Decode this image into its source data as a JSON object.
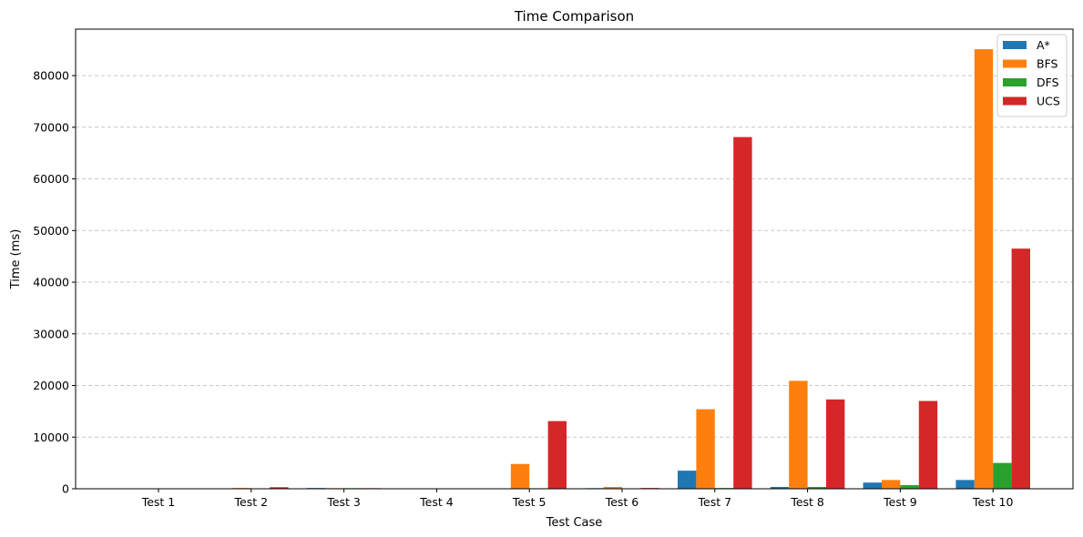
{
  "chart_data": {
    "type": "bar",
    "title": "Time Comparison",
    "xlabel": "Test Case",
    "ylabel": "Time (ms)",
    "categories": [
      "Test 1",
      "Test 2",
      "Test 3",
      "Test 4",
      "Test 5",
      "Test 6",
      "Test 7",
      "Test 8",
      "Test 9",
      "Test 10"
    ],
    "ylim": [
      0,
      89000
    ],
    "yticks": [
      0,
      10000,
      20000,
      30000,
      40000,
      50000,
      60000,
      70000,
      80000
    ],
    "grid": "y-dashed",
    "legend_position": "top-right",
    "series": [
      {
        "name": "A*",
        "color": "#1f77b4",
        "values": [
          10,
          20,
          150,
          10,
          60,
          120,
          3500,
          350,
          1200,
          1700
        ]
      },
      {
        "name": "BFS",
        "color": "#ff7f0e",
        "values": [
          10,
          150,
          120,
          10,
          4800,
          350,
          15400,
          20900,
          1700,
          85100
        ]
      },
      {
        "name": "DFS",
        "color": "#2ca02c",
        "values": [
          10,
          20,
          120,
          10,
          100,
          60,
          150,
          350,
          700,
          5000
        ]
      },
      {
        "name": "UCS",
        "color": "#d62728",
        "values": [
          10,
          300,
          120,
          10,
          13100,
          150,
          68100,
          17300,
          17000,
          46500
        ]
      }
    ]
  }
}
